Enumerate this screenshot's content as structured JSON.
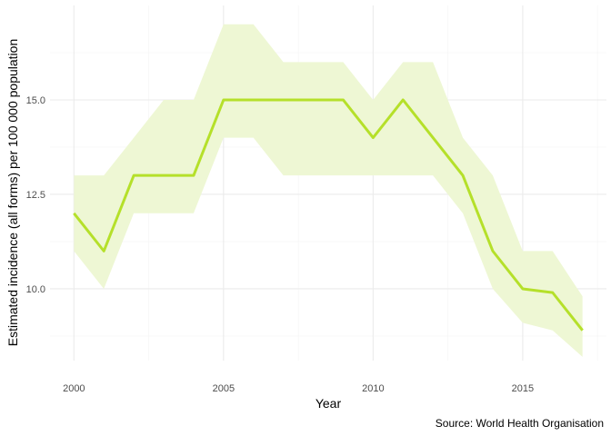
{
  "chart_data": {
    "type": "line",
    "xlabel": "Year",
    "ylabel": "Estimated incidence (all forms) per 100 000 population",
    "caption": "Source: World Health Organisation",
    "xlim": [
      1999.2,
      2017.8
    ],
    "ylim": [
      8.1,
      17.5
    ],
    "x_ticks": [
      2000,
      2005,
      2010,
      2015
    ],
    "x_tick_labels": [
      "2000",
      "2005",
      "2010",
      "2015"
    ],
    "y_ticks": [
      10.0,
      12.5,
      15.0
    ],
    "y_tick_labels": [
      "10.0",
      "12.5",
      "15.0"
    ],
    "grid": true,
    "colors": {
      "line": "#b5e02a",
      "ribbon": "#eef7d4",
      "grid_major": "#ebebeb",
      "grid_minor": "#f4f4f4"
    },
    "series": [
      {
        "x": [
          2000,
          2001,
          2002,
          2003,
          2004,
          2005,
          2006,
          2007,
          2008,
          2009,
          2010,
          2011,
          2012,
          2013,
          2014,
          2015,
          2016,
          2017
        ],
        "values": [
          12,
          11,
          13,
          13,
          13,
          15,
          15,
          15,
          15,
          15,
          14,
          15,
          14,
          13,
          11,
          10,
          9.9,
          8.9
        ],
        "low": [
          11,
          10,
          12,
          12,
          12,
          14,
          14,
          13,
          13,
          13,
          13,
          13,
          13,
          12,
          10,
          9.1,
          8.9,
          8.2
        ],
        "high": [
          13,
          13,
          14,
          15,
          15,
          17,
          17,
          16,
          16,
          16,
          15,
          16,
          16,
          14,
          13,
          11,
          11,
          9.8
        ]
      }
    ]
  }
}
